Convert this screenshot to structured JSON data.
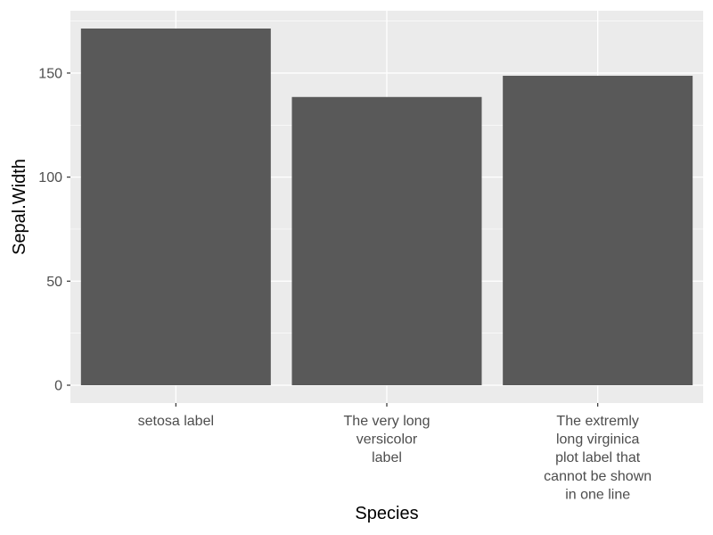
{
  "chart_data": {
    "type": "bar",
    "categories": [
      [
        "setosa label"
      ],
      [
        "The very long",
        "versicolor",
        "label"
      ],
      [
        "The extremly",
        "long virginica",
        "plot label that",
        "cannot be shown",
        "in one line"
      ]
    ],
    "values": [
      171.4,
      138.5,
      148.7
    ],
    "xlabel": "Species",
    "ylabel": "Sepal.Width",
    "yticks": [
      "0",
      "50",
      "100",
      "150"
    ],
    "ylim": [
      -8.57,
      179.97
    ],
    "grid": true,
    "colors": {
      "panel": "#ebebeb",
      "grid_major": "#ffffff",
      "bar": "#595959",
      "tick_text": "#4d4d4d",
      "tick_mark": "#333333"
    }
  }
}
